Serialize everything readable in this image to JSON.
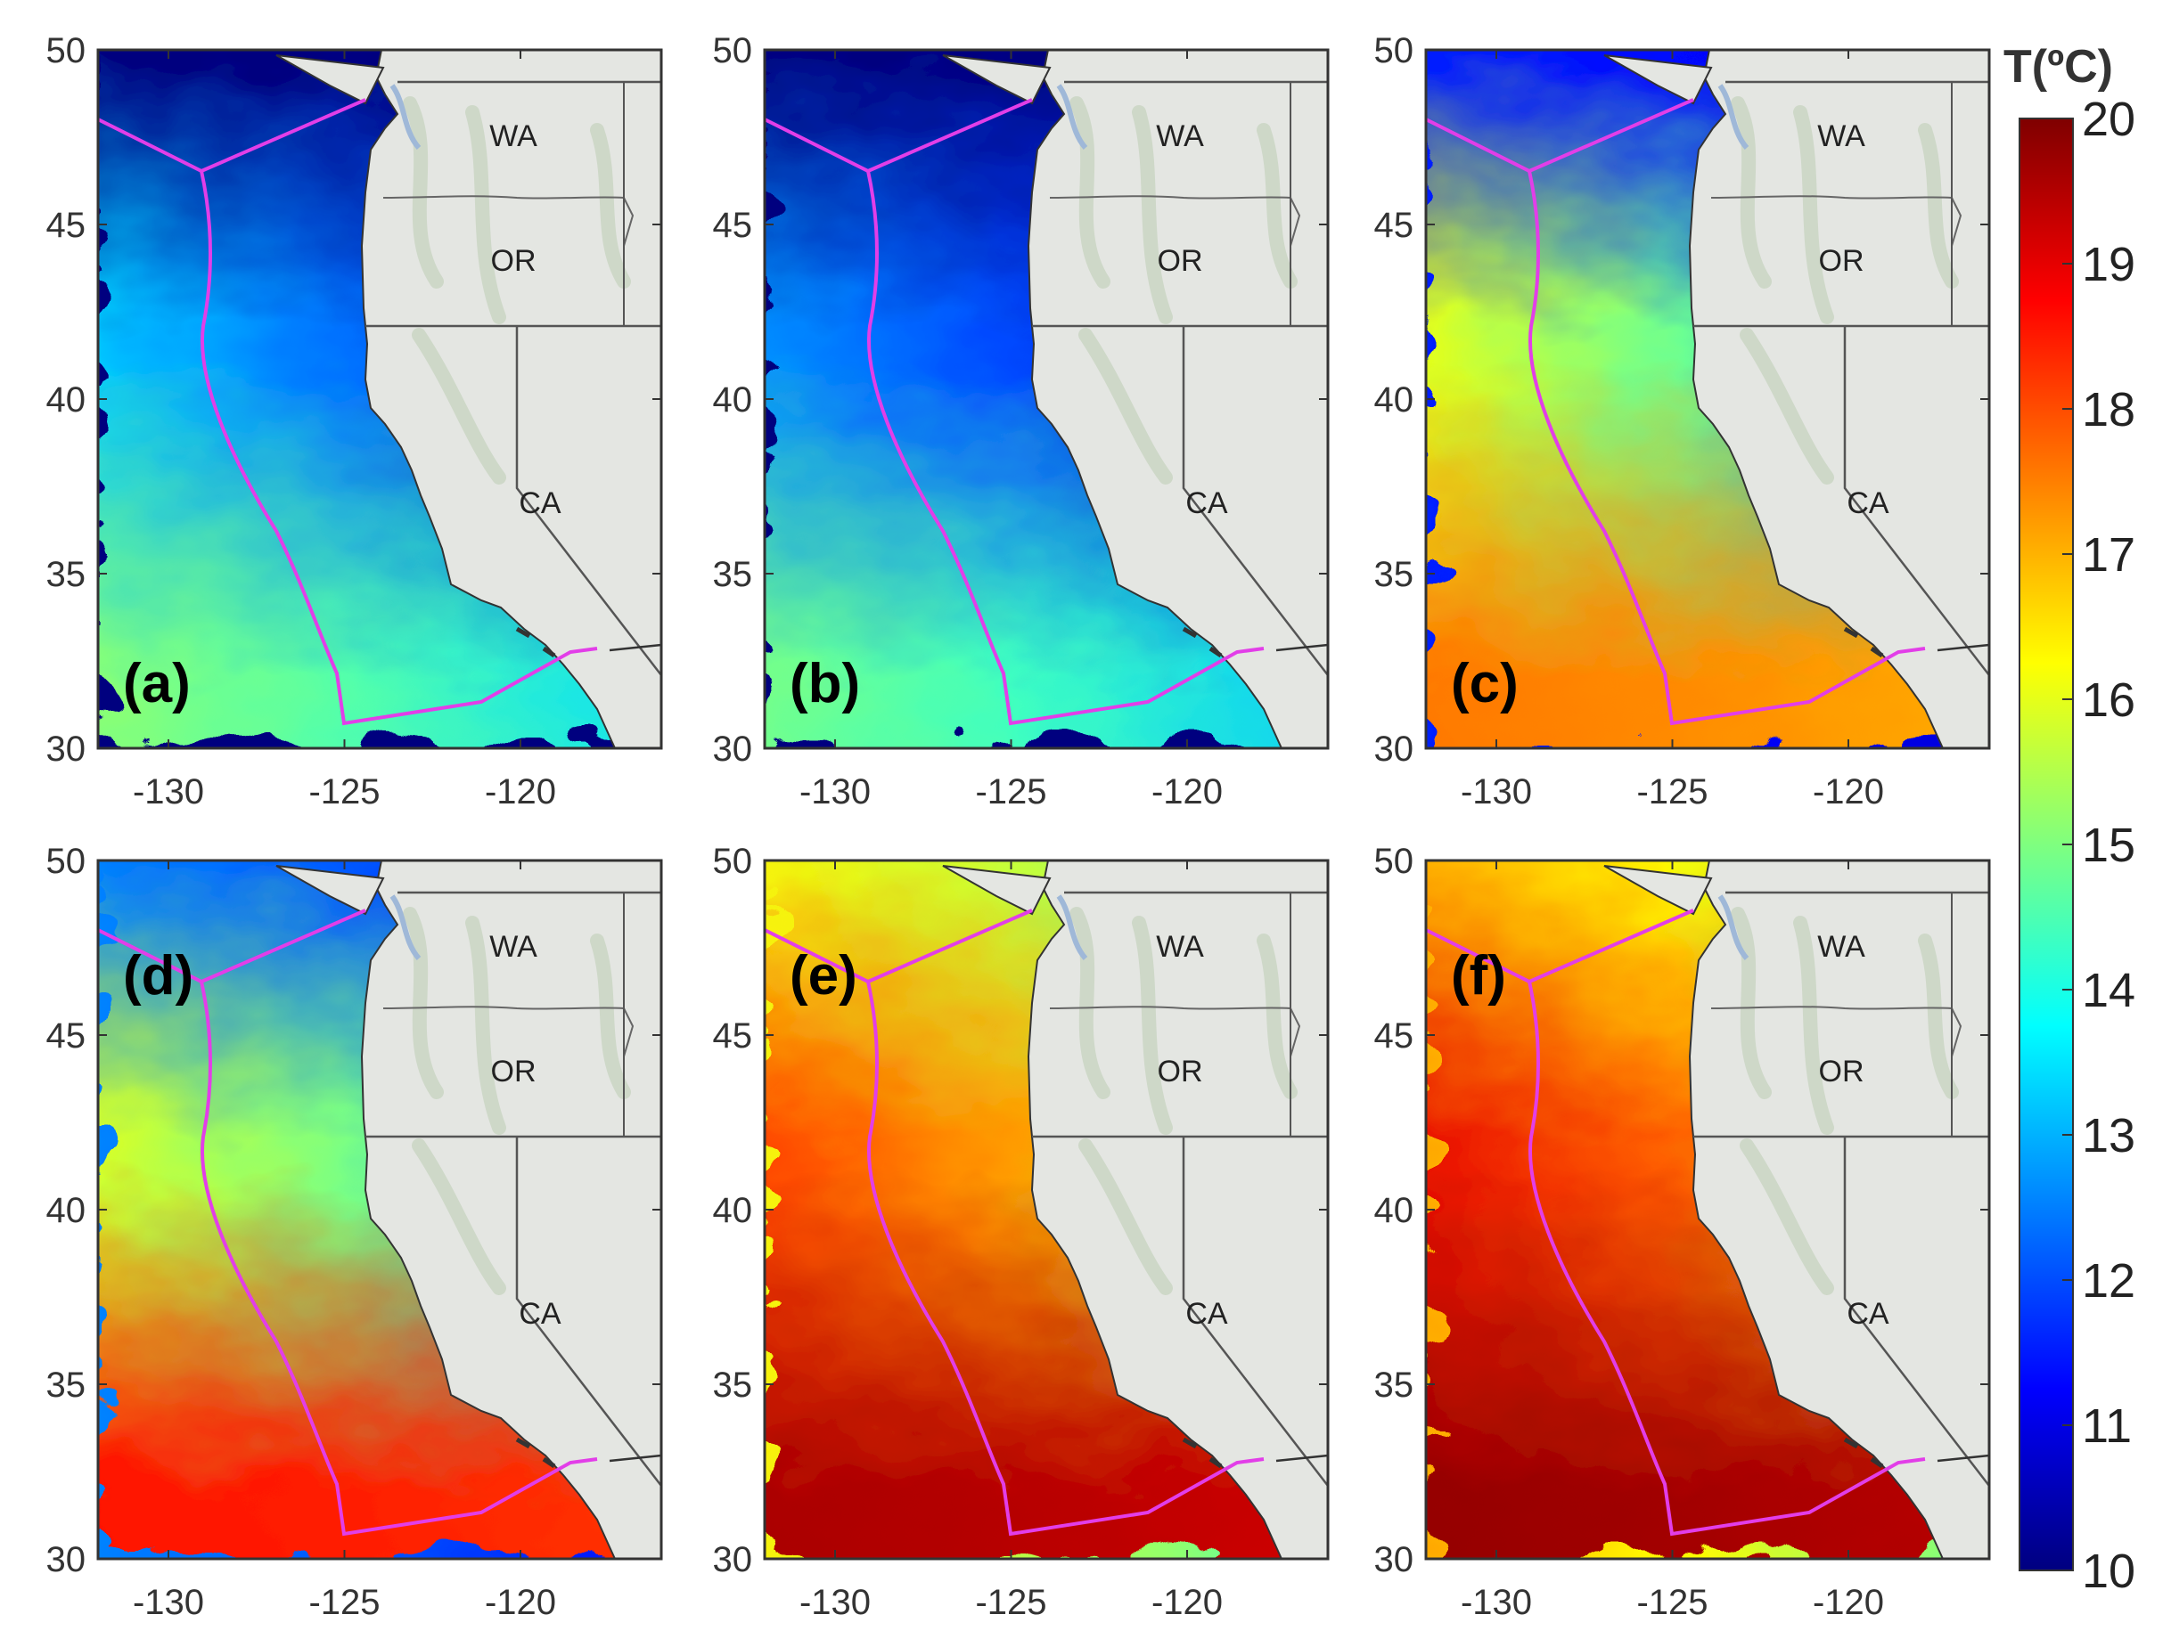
{
  "figure": {
    "colorbar": {
      "title": "T(ºC)",
      "min": 10,
      "max": 20,
      "ticks": [
        "10",
        "11",
        "12",
        "13",
        "14",
        "15",
        "16",
        "17",
        "18",
        "19",
        "20"
      ],
      "colormap": [
        "#00007f",
        "#0000ff",
        "#007fff",
        "#00ffff",
        "#7fff7f",
        "#ffff00",
        "#ff7f00",
        "#ff0000",
        "#7f0000"
      ]
    },
    "axes": {
      "lat_ticks": [
        "50",
        "45",
        "40",
        "35",
        "30"
      ],
      "lon_ticks": [
        "-130",
        "-125",
        "-120"
      ],
      "lat_range": [
        30,
        50
      ],
      "lon_range": [
        -132,
        -116
      ]
    },
    "state_labels": [
      "WA",
      "OR",
      "CA"
    ],
    "colors": {
      "land": "#e4e6e2",
      "boundary_line": "#e23ee8",
      "coast": "#333333"
    },
    "panels": [
      {
        "id": "a",
        "label": "(a)",
        "temps": {
          "nw": 10.0,
          "ne": 10.0,
          "w": 13.4,
          "e": 10.4,
          "sw": 15.2,
          "se": 13.4
        }
      },
      {
        "id": "b",
        "label": "(b)",
        "temps": {
          "nw": 10.0,
          "ne": 10.0,
          "w": 12.8,
          "e": 10.4,
          "sw": 15.0,
          "se": 13.2
        }
      },
      {
        "id": "c",
        "label": "(c)",
        "temps": {
          "nw": 11.6,
          "ne": 10.8,
          "w": 16.2,
          "e": 12.2,
          "sw": 17.6,
          "se": 17.0
        }
      },
      {
        "id": "d",
        "label": "(d)",
        "temps": {
          "nw": 12.6,
          "ne": 11.2,
          "w": 16.0,
          "e": 13.0,
          "sw": 18.6,
          "se": 18.2
        }
      },
      {
        "id": "e",
        "label": "(e)",
        "temps": {
          "nw": 16.4,
          "ne": 14.4,
          "w": 18.2,
          "e": 15.4,
          "sw": 19.6,
          "se": 19.2
        }
      },
      {
        "id": "f",
        "label": "(f)",
        "temps": {
          "nw": 17.2,
          "ne": 14.6,
          "w": 19.0,
          "e": 15.6,
          "sw": 19.8,
          "se": 19.4
        }
      }
    ]
  }
}
